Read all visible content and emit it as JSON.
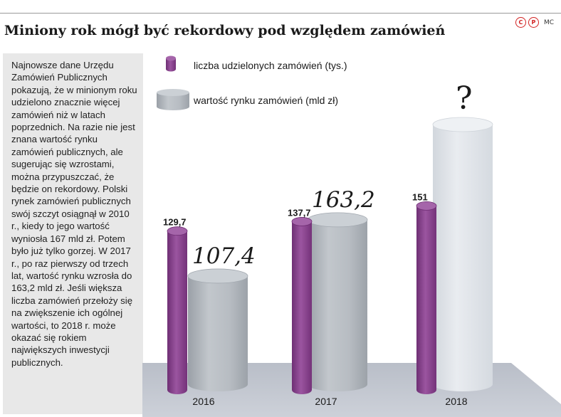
{
  "header": {
    "title": "Miniony rok mógł być rekordowy pod względem zamówień",
    "brand_letters": [
      "C",
      "P"
    ],
    "author": "MC"
  },
  "sidebar": {
    "text": "Najnowsze dane Urzędu Zamówień Publicznych pokazują, że w minionym roku udzielono znacznie więcej zamówień niż w latach poprzednich. Na razie nie jest znana wartość rynku zamówień publicznych, ale sugerując się wzrostami, można przypuszczać, że będzie on rekordowy. Polski rynek zamówień publicznych swój szczyt osiągnął w 2010 r., kiedy to jego wartość wyniosła 167 mld zł. Potem było już tylko gorzej. W 2017 r., po raz pierwszy od trzech lat, wartość rynku wzrosła do 163,2 mld zł. Jeśli większa liczba zamówień przełoży się na zwiększenie ich ogólnej wartości, to 2018 r. może okazać się rokiem największych inwestycji publicznych."
  },
  "colors": {
    "purple": "#8e4a93",
    "gray": "#b4b9bf",
    "floor": "#c6cad3",
    "ghost": "#e1e5ea"
  },
  "chart_data": {
    "type": "bar",
    "categories": [
      "2016",
      "2017",
      "2018"
    ],
    "series": [
      {
        "name": "liczba udzielonych zamówień (tys.)",
        "values": [
          129.7,
          137.7,
          151
        ],
        "labels": [
          "129,7",
          "137,7",
          "151"
        ]
      },
      {
        "name": "wartość rynku zamówień (mld zł)",
        "values": [
          107.4,
          163.2,
          null
        ],
        "labels": [
          "107,4",
          "163,2",
          "?"
        ]
      }
    ],
    "legend_position": "top",
    "grid": false
  }
}
